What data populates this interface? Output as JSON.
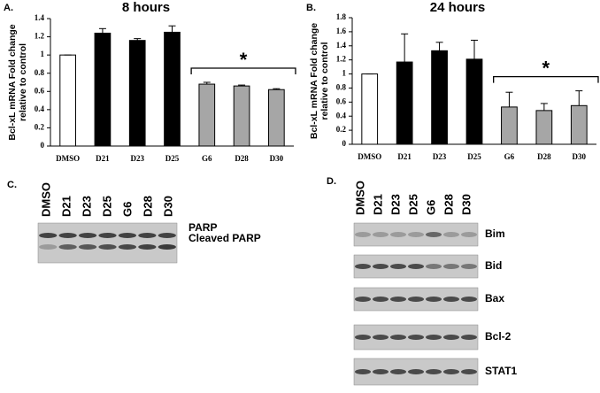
{
  "chart_data": [
    {
      "type": "bar",
      "panel": "A.",
      "title": "8 hours",
      "y_label": [
        "Bcl-xL mRNA Fold change",
        "relative to control"
      ],
      "categories": [
        "DMSO",
        "D21",
        "D23",
        "D25",
        "G6",
        "D28",
        "D30"
      ],
      "values": [
        1,
        1.24,
        1.16,
        1.25,
        0.68,
        0.66,
        0.62
      ],
      "errors": [
        0,
        0.05,
        0.02,
        0.07,
        0.02,
        0.01,
        0.01
      ],
      "colors": [
        "#ffffff",
        "#000000",
        "#000000",
        "#000000",
        "#a6a6a6",
        "#a6a6a6",
        "#a6a6a6"
      ],
      "ylim": [
        0,
        1.4
      ],
      "yticks": [
        0,
        0.2,
        0.4,
        0.6,
        0.8,
        1,
        1.2,
        1.4
      ],
      "annotation": "*"
    },
    {
      "type": "bar",
      "panel": "B.",
      "title": "24 hours",
      "y_label": [
        "Bcl-xL mRNA Fold change",
        "relative to control"
      ],
      "categories": [
        "DMSO",
        "D21",
        "D23",
        "D25",
        "G6",
        "D28",
        "D30"
      ],
      "values": [
        1,
        1.17,
        1.33,
        1.21,
        0.53,
        0.48,
        0.55
      ],
      "errors": [
        0,
        0.4,
        0.12,
        0.27,
        0.21,
        0.1,
        0.21
      ],
      "colors": [
        "#ffffff",
        "#000000",
        "#000000",
        "#000000",
        "#a6a6a6",
        "#a6a6a6",
        "#a6a6a6"
      ],
      "ylim": [
        0,
        1.8
      ],
      "yticks": [
        0,
        0.2,
        0.4,
        0.6,
        0.8,
        1,
        1.2,
        1.4,
        1.6,
        1.8
      ],
      "annotation": "*"
    }
  ],
  "blots": [
    {
      "panel": "C.",
      "lanes": [
        "DMSO",
        "D21",
        "D23",
        "D25",
        "G6",
        "D28",
        "D30"
      ],
      "bands": [
        "PARP",
        "Cleaved PARP"
      ]
    },
    {
      "panel": "D.",
      "lanes": [
        "DMSO",
        "D21",
        "D23",
        "D25",
        "G6",
        "D28",
        "D30"
      ],
      "bands": [
        "Bim",
        "Bid",
        "Bax",
        "Bcl-2",
        "STAT1"
      ]
    }
  ]
}
